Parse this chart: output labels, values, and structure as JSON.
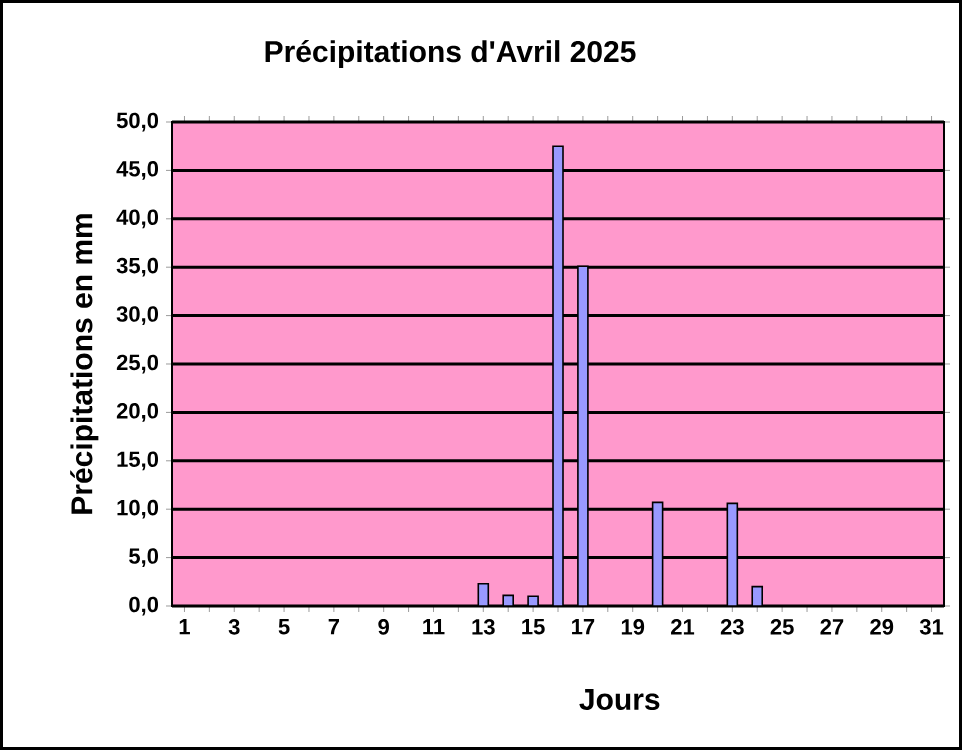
{
  "chart_data": {
    "type": "bar",
    "title": "Précipitations d'Avril 2025",
    "xlabel": "Jours",
    "ylabel": "Précipitations en mm",
    "categories": [
      "1",
      null,
      "3",
      null,
      "5",
      null,
      "7",
      null,
      "9",
      null,
      "11",
      null,
      "13",
      null,
      "15",
      null,
      "17",
      null,
      "19",
      null,
      "21",
      null,
      "23",
      null,
      "25",
      null,
      "27",
      null,
      "29",
      null,
      "31"
    ],
    "values": [
      0,
      0,
      0,
      0,
      0,
      0,
      0,
      0,
      0,
      0,
      0,
      0,
      2.3,
      1.1,
      1.0,
      47.5,
      35.1,
      0,
      0,
      10.7,
      0,
      0,
      10.6,
      2.0,
      0,
      0,
      0,
      0,
      0,
      0,
      0
    ],
    "color": "#9999ff",
    "ylim": [
      0,
      50
    ],
    "yticks": [
      {
        "value": 0,
        "label": "0,0"
      },
      {
        "value": 5,
        "label": "5,0"
      },
      {
        "value": 10,
        "label": "10,0"
      },
      {
        "value": 15,
        "label": "15,0"
      },
      {
        "value": 20,
        "label": "20,0"
      },
      {
        "value": 25,
        "label": "25,0"
      },
      {
        "value": 30,
        "label": "30,0"
      },
      {
        "value": 35,
        "label": "35,0"
      },
      {
        "value": 40,
        "label": "40,0"
      },
      {
        "value": 45,
        "label": "45,0"
      },
      {
        "value": 50,
        "label": "50,0"
      }
    ],
    "grid": "y"
  }
}
